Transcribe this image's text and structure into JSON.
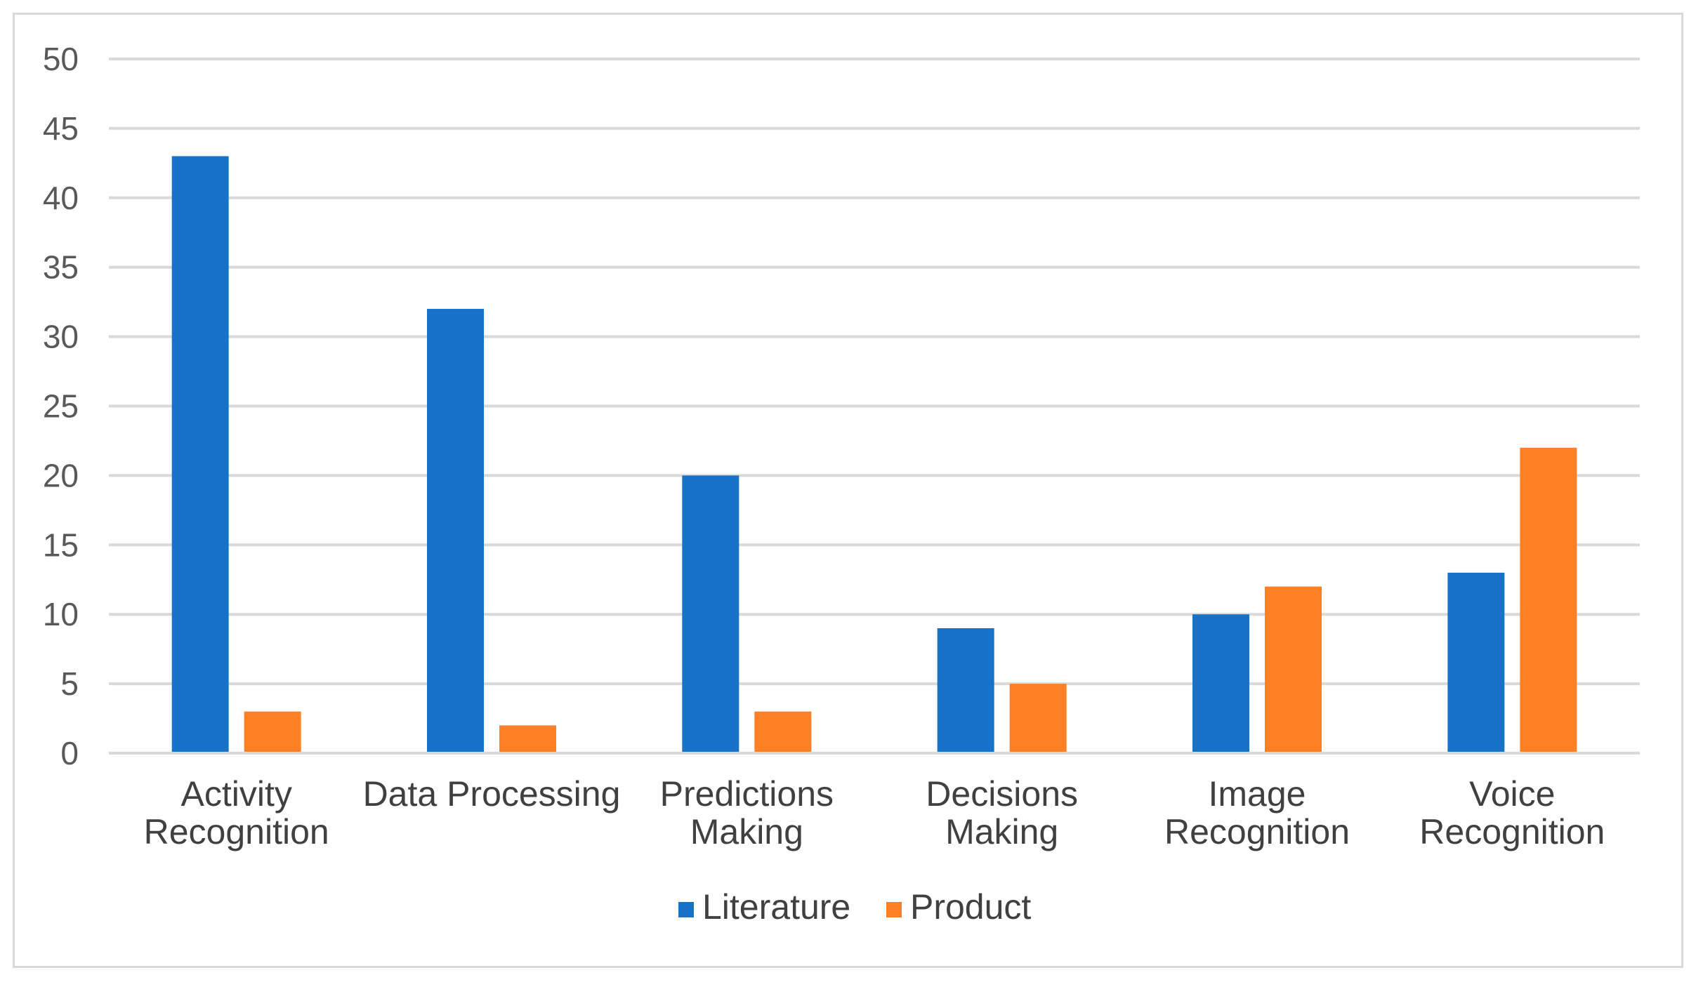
{
  "chart_data": {
    "type": "bar",
    "title": "",
    "xlabel": "",
    "ylabel": "",
    "ylim": [
      0,
      50
    ],
    "yticks": [
      0,
      5,
      10,
      15,
      20,
      25,
      30,
      35,
      40,
      45,
      50
    ],
    "grid": true,
    "legend_position": "bottom",
    "categories": [
      [
        "Activity",
        "Recognition"
      ],
      [
        "Data Processing"
      ],
      [
        "Predictions",
        "Making"
      ],
      [
        "Decisions",
        "Making"
      ],
      [
        "Image",
        "Recognition"
      ],
      [
        "Voice",
        "Recognition"
      ]
    ],
    "series": [
      {
        "name": "Literature",
        "color": "#1872c8",
        "values": [
          43,
          32,
          20,
          9,
          10,
          13
        ]
      },
      {
        "name": "Product",
        "color": "#fd8027",
        "values": [
          3,
          2,
          3,
          5,
          12,
          22
        ]
      }
    ]
  }
}
